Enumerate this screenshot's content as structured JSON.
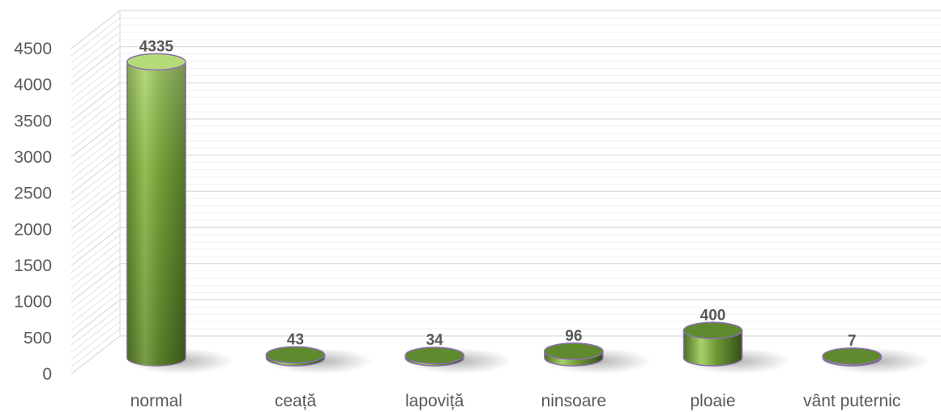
{
  "chart_data": {
    "type": "bar",
    "style": "3d-cylinder",
    "categories": [
      "normal",
      "ceață",
      "lapoviță",
      "ninsoare",
      "ploaie",
      "vânt puternic"
    ],
    "values": [
      4335,
      43,
      34,
      96,
      400,
      7
    ],
    "data_labels": [
      "4335",
      "43",
      "34",
      "96",
      "400",
      "7"
    ],
    "yticks": [
      "0",
      "500",
      "1000",
      "1500",
      "2000",
      "2500",
      "3000",
      "3500",
      "4000",
      "4500"
    ],
    "ylim": [
      0,
      4500
    ],
    "grid": true,
    "legend": "none",
    "colors": {
      "bar_light": "#c9e59a",
      "bar_mid": "#6f9a36",
      "bar_dark": "#3d5a1c",
      "bar_top": "#5f8a2e",
      "outline": "#8c6fb0",
      "grid": "#d9d9d9",
      "text": "#595959"
    }
  }
}
